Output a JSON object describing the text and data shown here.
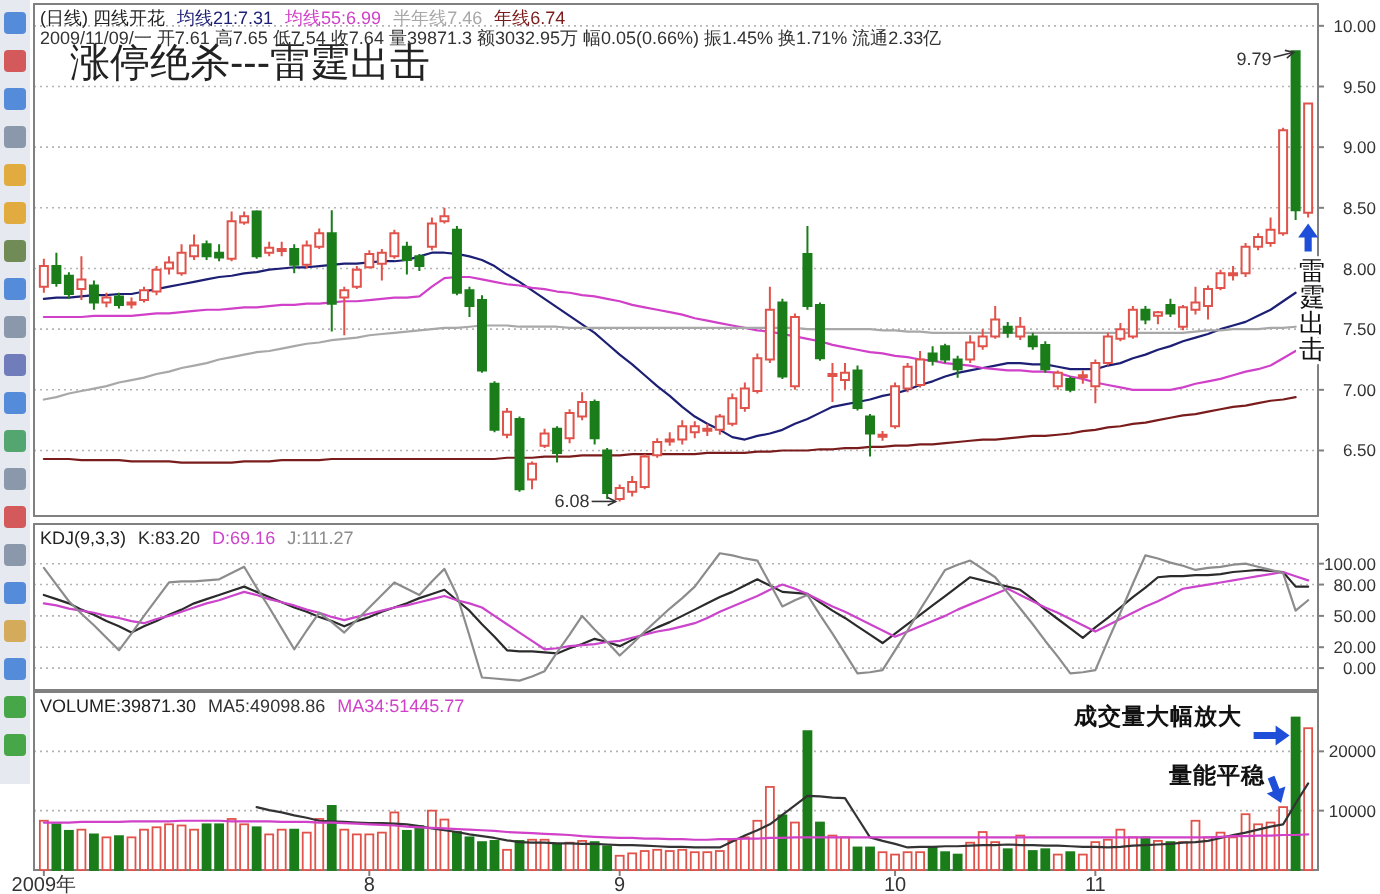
{
  "chart_data": [
    {
      "type": "candlestick",
      "title": "涨停绝杀---雷霆出击",
      "subtitle": "(日线) 四线开花",
      "categories": [
        null,
        null,
        null,
        null,
        null,
        null,
        null,
        null,
        null,
        null,
        null,
        null,
        null,
        null,
        null,
        null,
        null,
        null,
        null,
        null,
        null,
        null,
        null,
        null,
        null,
        null,
        null,
        null,
        null,
        null,
        null,
        null,
        null,
        null,
        null,
        null,
        null,
        null,
        null,
        null,
        null,
        null,
        null,
        null,
        null,
        null,
        null,
        null,
        null,
        null,
        null,
        null,
        null,
        null,
        null,
        null,
        null,
        null,
        null,
        null,
        null,
        null,
        null,
        null,
        null,
        null,
        null,
        null,
        null,
        null,
        null,
        null,
        null,
        null,
        null,
        null,
        null,
        null,
        null,
        null,
        null,
        null,
        null,
        null,
        null,
        null,
        null,
        null,
        null,
        null,
        null,
        null,
        null,
        null,
        null,
        null,
        null,
        null,
        null,
        null,
        null,
        null
      ],
      "ohlc": [
        [
          7.85,
          8.08,
          7.8,
          8.02
        ],
        [
          8.02,
          8.13,
          7.85,
          7.88
        ],
        [
          7.94,
          7.97,
          7.75,
          7.79
        ],
        [
          7.83,
          8.1,
          7.74,
          7.91
        ],
        [
          7.86,
          7.9,
          7.66,
          7.72
        ],
        [
          7.72,
          7.8,
          7.68,
          7.76
        ],
        [
          7.77,
          7.8,
          7.67,
          7.7
        ],
        [
          7.71,
          7.76,
          7.67,
          7.72
        ],
        [
          7.74,
          7.85,
          7.72,
          7.82
        ],
        [
          7.81,
          8.02,
          7.78,
          7.99
        ],
        [
          8.0,
          8.1,
          7.95,
          8.05
        ],
        [
          7.96,
          8.2,
          7.94,
          8.13
        ],
        [
          8.1,
          8.28,
          8.07,
          8.19
        ],
        [
          8.2,
          8.23,
          8.07,
          8.1
        ],
        [
          8.13,
          8.2,
          8.06,
          8.09
        ],
        [
          8.08,
          8.47,
          8.06,
          8.39
        ],
        [
          8.38,
          8.47,
          8.36,
          8.43
        ],
        [
          8.47,
          8.48,
          8.08,
          8.1
        ],
        [
          8.13,
          8.22,
          8.1,
          8.17
        ],
        [
          8.15,
          8.22,
          8.1,
          8.16
        ],
        [
          8.16,
          8.2,
          7.96,
          8.03
        ],
        [
          8.03,
          8.23,
          8.0,
          8.19
        ],
        [
          8.18,
          8.33,
          8.16,
          8.29
        ],
        [
          8.29,
          8.48,
          7.48,
          7.71
        ],
        [
          7.76,
          7.85,
          7.45,
          7.82
        ],
        [
          7.85,
          8.02,
          7.83,
          7.99
        ],
        [
          8.01,
          8.15,
          8.0,
          8.12
        ],
        [
          8.04,
          8.16,
          7.9,
          8.13
        ],
        [
          8.1,
          8.32,
          8.08,
          8.29
        ],
        [
          8.18,
          8.22,
          7.95,
          8.07
        ],
        [
          8.1,
          8.12,
          7.98,
          8.02
        ],
        [
          8.18,
          8.42,
          8.15,
          8.37
        ],
        [
          8.39,
          8.5,
          8.37,
          8.43
        ],
        [
          8.32,
          8.35,
          7.78,
          7.8
        ],
        [
          7.82,
          7.85,
          7.6,
          7.69
        ],
        [
          7.74,
          7.78,
          7.14,
          7.16
        ],
        [
          7.05,
          7.07,
          6.65,
          6.67
        ],
        [
          6.63,
          6.85,
          6.6,
          6.82
        ],
        [
          6.76,
          6.78,
          6.16,
          6.18
        ],
        [
          6.26,
          6.41,
          6.18,
          6.39
        ],
        [
          6.54,
          6.68,
          6.52,
          6.64
        ],
        [
          6.68,
          6.7,
          6.4,
          6.48
        ],
        [
          6.6,
          6.84,
          6.56,
          6.81
        ],
        [
          6.78,
          6.98,
          6.75,
          6.9
        ],
        [
          6.9,
          6.92,
          6.55,
          6.6
        ],
        [
          6.5,
          6.52,
          6.1,
          6.15
        ],
        [
          6.1,
          6.22,
          6.08,
          6.19
        ],
        [
          6.16,
          6.29,
          6.12,
          6.24
        ],
        [
          6.2,
          6.47,
          6.18,
          6.45
        ],
        [
          6.46,
          6.6,
          6.44,
          6.57
        ],
        [
          6.58,
          6.65,
          6.54,
          6.59
        ],
        [
          6.59,
          6.75,
          6.55,
          6.7
        ],
        [
          6.65,
          6.74,
          6.6,
          6.7
        ],
        [
          6.67,
          6.72,
          6.62,
          6.68
        ],
        [
          6.67,
          6.8,
          6.63,
          6.78
        ],
        [
          6.72,
          6.97,
          6.7,
          6.93
        ],
        [
          6.85,
          7.06,
          6.82,
          7.01
        ],
        [
          6.99,
          7.3,
          6.97,
          7.26
        ],
        [
          7.25,
          7.85,
          7.22,
          7.66
        ],
        [
          7.72,
          7.75,
          7.09,
          7.11
        ],
        [
          7.03,
          7.63,
          7.0,
          7.6
        ],
        [
          8.12,
          8.35,
          7.66,
          7.69
        ],
        [
          7.7,
          7.72,
          7.24,
          7.26
        ],
        [
          7.12,
          7.22,
          6.9,
          7.13
        ],
        [
          7.08,
          7.22,
          7.0,
          7.14
        ],
        [
          7.16,
          7.2,
          6.83,
          6.85
        ],
        [
          6.78,
          6.8,
          6.45,
          6.64
        ],
        [
          6.62,
          6.66,
          6.58,
          6.63
        ],
        [
          6.7,
          7.06,
          6.68,
          7.03
        ],
        [
          7.01,
          7.22,
          6.98,
          7.19
        ],
        [
          7.04,
          7.32,
          7.02,
          7.25
        ],
        [
          7.3,
          7.36,
          7.2,
          7.24
        ],
        [
          7.36,
          7.38,
          7.22,
          7.25
        ],
        [
          7.25,
          7.28,
          7.1,
          7.17
        ],
        [
          7.25,
          7.45,
          7.22,
          7.39
        ],
        [
          7.36,
          7.5,
          7.33,
          7.44
        ],
        [
          7.44,
          7.69,
          7.42,
          7.58
        ],
        [
          7.52,
          7.56,
          7.43,
          7.47
        ],
        [
          7.44,
          7.6,
          7.41,
          7.52
        ],
        [
          7.44,
          7.47,
          7.33,
          7.36
        ],
        [
          7.37,
          7.4,
          7.14,
          7.17
        ],
        [
          7.03,
          7.16,
          7.0,
          7.14
        ],
        [
          7.09,
          7.11,
          6.98,
          7.0
        ],
        [
          7.11,
          7.16,
          7.05,
          7.12
        ],
        [
          7.03,
          7.25,
          6.89,
          7.22
        ],
        [
          7.22,
          7.47,
          7.2,
          7.44
        ],
        [
          7.42,
          7.55,
          7.4,
          7.5
        ],
        [
          7.44,
          7.69,
          7.42,
          7.66
        ],
        [
          7.66,
          7.69,
          7.54,
          7.58
        ],
        [
          7.61,
          7.65,
          7.54,
          7.64
        ],
        [
          7.7,
          7.75,
          7.6,
          7.63
        ],
        [
          7.52,
          7.7,
          7.49,
          7.68
        ],
        [
          7.66,
          7.85,
          7.62,
          7.72
        ],
        [
          7.69,
          7.86,
          7.58,
          7.83
        ],
        [
          7.84,
          7.99,
          7.82,
          7.96
        ],
        [
          7.95,
          8.02,
          7.9,
          7.96
        ],
        [
          7.96,
          8.21,
          7.93,
          8.18
        ],
        [
          8.18,
          8.29,
          8.15,
          8.26
        ],
        [
          8.21,
          8.42,
          8.18,
          8.32
        ],
        [
          8.29,
          9.16,
          8.27,
          9.14
        ],
        [
          9.79,
          9.79,
          8.4,
          8.48
        ],
        [
          8.46,
          9.36,
          8.42,
          9.36
        ]
      ],
      "colors": [
        "#e0524a",
        "#1a7d1a",
        "#1a7d1a",
        "#e0524a",
        "#1a7d1a",
        "#e0524a",
        "#1a7d1a",
        "#e0524a",
        "#e0524a",
        "#e0524a",
        "#e0524a",
        "#e0524a",
        "#e0524a",
        "#1a7d1a",
        "#1a7d1a",
        "#e0524a",
        "#e0524a",
        "#1a7d1a",
        "#e0524a",
        "#e0524a",
        "#1a7d1a",
        "#e0524a",
        "#e0524a",
        "#1a7d1a",
        "#e0524a",
        "#e0524a",
        "#e0524a",
        "#e0524a",
        "#e0524a",
        "#1a7d1a",
        "#1a7d1a",
        "#e0524a",
        "#e0524a",
        "#1a7d1a",
        "#1a7d1a",
        "#1a7d1a",
        "#1a7d1a",
        "#e0524a",
        "#1a7d1a",
        "#e0524a",
        "#e0524a",
        "#1a7d1a",
        "#e0524a",
        "#e0524a",
        "#1a7d1a",
        "#1a7d1a",
        "#e0524a",
        "#e0524a",
        "#e0524a",
        "#e0524a",
        "#e0524a",
        "#e0524a",
        "#e0524a",
        "#e0524a",
        "#e0524a",
        "#e0524a",
        "#e0524a",
        "#e0524a",
        "#e0524a",
        "#1a7d1a",
        "#e0524a",
        "#1a7d1a",
        "#1a7d1a",
        "#e0524a",
        "#e0524a",
        "#1a7d1a",
        "#1a7d1a",
        "#e0524a",
        "#e0524a",
        "#e0524a",
        "#e0524a",
        "#1a7d1a",
        "#1a7d1a",
        "#1a7d1a",
        "#e0524a",
        "#e0524a",
        "#e0524a",
        "#1a7d1a",
        "#e0524a",
        "#1a7d1a",
        "#1a7d1a",
        "#e0524a",
        "#1a7d1a",
        "#e0524a",
        "#e0524a",
        "#e0524a",
        "#e0524a",
        "#e0524a",
        "#1a7d1a",
        "#e0524a",
        "#1a7d1a",
        "#e0524a",
        "#e0524a",
        "#e0524a",
        "#e0524a",
        "#e0524a",
        "#e0524a",
        "#e0524a",
        "#e0524a",
        "#e0524a",
        "#1a7d1a",
        "#e0524a"
      ],
      "series": [
        {
          "type": "line",
          "name": "均线21:7.31",
          "color": "#1c1f74",
          "values": [
            7.75,
            7.76,
            7.76,
            7.77,
            7.78,
            7.78,
            7.79,
            7.79,
            7.81,
            7.83,
            7.85,
            7.87,
            7.89,
            7.91,
            7.93,
            7.94,
            7.96,
            7.97,
            7.99,
            8.0,
            8.01,
            8.01,
            8.02,
            8.03,
            8.04,
            8.04,
            8.05,
            8.06,
            8.06,
            8.07,
            8.1,
            8.13,
            8.13,
            8.12,
            8.1,
            8.07,
            8.02,
            7.95,
            7.89,
            7.82,
            7.75,
            7.68,
            7.61,
            7.54,
            7.47,
            7.38,
            7.29,
            7.21,
            7.12,
            7.03,
            6.95,
            6.86,
            6.78,
            6.72,
            6.67,
            6.61,
            6.59,
            6.62,
            6.64,
            6.67,
            6.72,
            6.76,
            6.81,
            6.86,
            6.88,
            6.9,
            6.92,
            6.95,
            6.97,
            7.0,
            7.04,
            7.07,
            7.11,
            7.14,
            7.16,
            7.18,
            7.2,
            7.22,
            7.22,
            7.21,
            7.21,
            7.19,
            7.17,
            7.17,
            7.17,
            7.2,
            7.22,
            7.26,
            7.29,
            7.33,
            7.36,
            7.4,
            7.43,
            7.46,
            7.5,
            7.53,
            7.56,
            7.61,
            7.66,
            7.73,
            7.8,
            null
          ]
        },
        {
          "type": "line",
          "name": "均线55:6.99",
          "color": "#d040c8",
          "values": [
            7.6,
            7.6,
            7.6,
            7.6,
            7.61,
            7.61,
            7.61,
            7.61,
            7.62,
            7.63,
            7.63,
            7.64,
            7.65,
            7.66,
            7.66,
            7.67,
            7.68,
            7.68,
            7.69,
            7.7,
            7.7,
            7.71,
            7.71,
            7.72,
            7.73,
            7.73,
            7.74,
            7.75,
            7.76,
            7.76,
            7.77,
            7.85,
            7.92,
            7.93,
            7.93,
            7.91,
            7.89,
            7.87,
            7.86,
            7.84,
            7.83,
            7.81,
            7.8,
            7.78,
            7.77,
            7.75,
            7.73,
            7.7,
            7.68,
            7.66,
            7.64,
            7.62,
            7.59,
            7.57,
            7.55,
            7.53,
            7.51,
            7.49,
            7.48,
            7.46,
            7.44,
            7.42,
            7.4,
            7.37,
            7.35,
            7.33,
            7.31,
            7.3,
            7.28,
            7.27,
            7.25,
            7.24,
            7.22,
            7.21,
            7.2,
            7.18,
            7.17,
            7.16,
            7.16,
            7.15,
            7.15,
            7.14,
            7.11,
            7.09,
            7.06,
            7.04,
            7.02,
            7.0,
            7.0,
            7.0,
            7.0,
            7.02,
            7.05,
            7.07,
            7.09,
            7.12,
            7.15,
            7.17,
            7.2,
            7.26,
            7.32,
            null
          ]
        },
        {
          "type": "line",
          "name": "半年线7.46",
          "color": "#a8a8a8",
          "values": [
            6.92,
            6.94,
            6.97,
            6.99,
            7.01,
            7.03,
            7.06,
            7.08,
            7.1,
            7.13,
            7.15,
            7.18,
            7.2,
            7.22,
            7.25,
            7.27,
            7.29,
            7.31,
            7.32,
            7.34,
            7.36,
            7.38,
            7.39,
            7.41,
            7.42,
            7.43,
            7.45,
            7.46,
            7.47,
            7.48,
            7.49,
            7.5,
            7.51,
            7.51,
            7.52,
            7.53,
            7.53,
            7.53,
            7.52,
            7.52,
            7.52,
            7.52,
            7.51,
            7.51,
            7.51,
            7.51,
            7.51,
            7.51,
            7.51,
            7.51,
            7.51,
            7.51,
            7.51,
            7.51,
            7.51,
            7.51,
            7.51,
            7.51,
            7.51,
            7.51,
            7.51,
            7.5,
            7.5,
            7.5,
            7.5,
            7.5,
            7.5,
            7.49,
            7.49,
            7.48,
            7.48,
            7.47,
            7.47,
            7.47,
            7.47,
            7.47,
            7.47,
            7.47,
            7.47,
            7.47,
            7.47,
            7.47,
            7.47,
            7.47,
            7.47,
            7.47,
            7.47,
            7.47,
            7.47,
            7.47,
            7.47,
            7.47,
            7.48,
            7.49,
            7.49,
            7.5,
            7.5,
            7.5,
            7.51,
            7.51,
            7.52,
            null
          ]
        },
        {
          "type": "line",
          "name": "年线6.74",
          "color": "#7b1c1c",
          "values": [
            6.43,
            6.43,
            6.43,
            6.42,
            6.42,
            6.42,
            6.42,
            6.41,
            6.41,
            6.41,
            6.41,
            6.4,
            6.4,
            6.4,
            6.4,
            6.4,
            6.41,
            6.41,
            6.41,
            6.42,
            6.42,
            6.42,
            6.42,
            6.43,
            6.43,
            6.43,
            6.43,
            6.43,
            6.43,
            6.43,
            6.43,
            6.43,
            6.43,
            6.43,
            6.43,
            6.43,
            6.43,
            6.44,
            6.44,
            6.44,
            6.45,
            6.45,
            6.45,
            6.46,
            6.46,
            6.46,
            6.46,
            6.47,
            6.47,
            6.47,
            6.47,
            6.47,
            6.47,
            6.48,
            6.48,
            6.48,
            6.48,
            6.49,
            6.49,
            6.5,
            6.5,
            6.5,
            6.51,
            6.51,
            6.52,
            6.52,
            6.53,
            6.53,
            6.54,
            6.54,
            6.55,
            6.55,
            6.56,
            6.57,
            6.58,
            6.59,
            6.59,
            6.6,
            6.61,
            6.62,
            6.62,
            6.63,
            6.64,
            6.66,
            6.67,
            6.69,
            6.7,
            6.72,
            6.73,
            6.75,
            6.77,
            6.79,
            6.8,
            6.82,
            6.84,
            6.86,
            6.87,
            6.89,
            6.91,
            6.92,
            6.94,
            null
          ]
        }
      ],
      "ylim": [
        5.96,
        10.18
      ],
      "yticks": [
        {
          "value": 6.5,
          "label": "6.50"
        },
        {
          "value": 7,
          "label": "7.00"
        },
        {
          "value": 7.5,
          "label": "7.50"
        },
        {
          "value": 8,
          "label": "8.00"
        },
        {
          "value": 8.5,
          "label": "8.50"
        },
        {
          "value": 9,
          "label": "9.00"
        },
        {
          "value": 9.5,
          "label": "9.50"
        },
        {
          "value": 10,
          "label": "10.00"
        }
      ],
      "tick_labels": "y",
      "grid": "y",
      "legend": "top left",
      "annotations": [
        "9.79",
        "6.08",
        "雷霆出击",
        "2009/11/09/一 开7.61 高7.65 低7.54 收7.64 量39871.3 额3032.95万 幅0.05(0.66%) 振1.45% 换1.71% 流通2.33亿"
      ]
    },
    {
      "type": "line",
      "title": "KDJ(9,3,3)",
      "categories": [
        null,
        null,
        null,
        null,
        null,
        null,
        null,
        null,
        null,
        null,
        null,
        null,
        null,
        null,
        null,
        null,
        null,
        null,
        null,
        null,
        null,
        null,
        null,
        null,
        null,
        null,
        null,
        null,
        null,
        null,
        null,
        null,
        null,
        null,
        null,
        null,
        null,
        null,
        null,
        null,
        null,
        null,
        null,
        null,
        null,
        null,
        null,
        null,
        null,
        null,
        null,
        null,
        null,
        null,
        null,
        null,
        null,
        null,
        null,
        null,
        null,
        null,
        null,
        null,
        null,
        null,
        null,
        null,
        null,
        null,
        null,
        null,
        null,
        null,
        null,
        null,
        null,
        null,
        null,
        null,
        null,
        null,
        null,
        null,
        null,
        null,
        null,
        null,
        null,
        null,
        null,
        null,
        null,
        null,
        null,
        null,
        null,
        null,
        null,
        null,
        null,
        null
      ],
      "series": [
        {
          "name": "K:83.20",
          "color": "#2b2b2b",
          "values": [
            70,
            66,
            62,
            56,
            51,
            45,
            40,
            34,
            40,
            45,
            51,
            56,
            62,
            66,
            70,
            74,
            78,
            73,
            68,
            63,
            58,
            54,
            49,
            45,
            40,
            45,
            49,
            54,
            58,
            62,
            67,
            71,
            75,
            65,
            55,
            42,
            30,
            17,
            16,
            16,
            15,
            14,
            19,
            23,
            28,
            25,
            21,
            27,
            33,
            39,
            44,
            50,
            56,
            62,
            68,
            73,
            79,
            85,
            79,
            73,
            72,
            71,
            63,
            55,
            48,
            40,
            32,
            24,
            33,
            42,
            51,
            60,
            69,
            78,
            87,
            84,
            81,
            78,
            75,
            66,
            56,
            47,
            38,
            29,
            39,
            48,
            58,
            68,
            77,
            87,
            88,
            88,
            89,
            89,
            90,
            92,
            93,
            94,
            93,
            92,
            78,
            78
          ]
        },
        {
          "name": "D:69.16",
          "color": "#cc44cc",
          "values": [
            62,
            60,
            57,
            55,
            53,
            50,
            48,
            45,
            43,
            47,
            50,
            54,
            58,
            62,
            65,
            69,
            73,
            70,
            66,
            63,
            60,
            56,
            53,
            49,
            46,
            49,
            52,
            55,
            58,
            60,
            63,
            66,
            69,
            65,
            62,
            58,
            50,
            42,
            34,
            26,
            18,
            19,
            21,
            22,
            23,
            25,
            26,
            29,
            32,
            35,
            37,
            40,
            43,
            48,
            54,
            59,
            64,
            69,
            75,
            80,
            76,
            71,
            65,
            59,
            54,
            48,
            42,
            36,
            30,
            35,
            40,
            45,
            50,
            56,
            61,
            66,
            71,
            76,
            70,
            64,
            58,
            53,
            47,
            41,
            35,
            41,
            47,
            53,
            59,
            64,
            70,
            76,
            78,
            80,
            82,
            84,
            86,
            88,
            90,
            92,
            88,
            84
          ]
        },
        {
          "name": "J:111.27",
          "color": "#8c8c8c",
          "values": [
            96,
            80,
            64,
            52,
            41,
            29,
            17,
            33,
            50,
            66,
            82,
            83,
            83,
            84,
            85,
            91,
            97,
            77,
            58,
            38,
            18,
            36,
            53,
            44,
            34,
            46,
            58,
            70,
            82,
            76,
            70,
            83,
            95,
            70,
            31,
            -9,
            -10,
            -11,
            -12,
            -8,
            -3,
            15,
            32,
            50,
            37,
            25,
            12,
            23,
            35,
            46,
            57,
            67,
            78,
            94,
            110,
            108,
            105,
            103,
            81,
            59,
            65,
            70,
            51,
            33,
            14,
            -5,
            -4,
            -2,
            17,
            36,
            56,
            75,
            94,
            99,
            103,
            95,
            87,
            72,
            57,
            42,
            26,
            11,
            -5,
            -4,
            -2,
            26,
            53,
            81,
            108,
            105,
            101,
            98,
            94,
            96,
            97,
            99,
            100,
            97,
            94,
            91,
            55,
            65
          ]
        }
      ],
      "ylim": [
        -21,
        138
      ],
      "yticks": [
        {
          "value": 0,
          "label": "0.00"
        },
        {
          "value": 20,
          "label": "20.00"
        },
        {
          "value": 50,
          "label": "50.00"
        },
        {
          "value": 80,
          "label": "80.00"
        },
        {
          "value": 100,
          "label": "100.00"
        }
      ],
      "tick_labels": "y",
      "grid": "y",
      "legend": "top left"
    },
    {
      "type": "bar",
      "title": "VOLUME:39871.30",
      "categories": [
        "2009年",
        null,
        null,
        null,
        null,
        null,
        null,
        null,
        null,
        null,
        null,
        null,
        null,
        null,
        null,
        null,
        null,
        null,
        null,
        null,
        null,
        null,
        null,
        null,
        null,
        null,
        "8",
        null,
        null,
        null,
        null,
        null,
        null,
        null,
        null,
        null,
        null,
        null,
        null,
        null,
        null,
        null,
        null,
        null,
        null,
        null,
        "9",
        null,
        null,
        null,
        null,
        null,
        null,
        null,
        null,
        null,
        null,
        null,
        null,
        null,
        null,
        null,
        null,
        null,
        null,
        null,
        null,
        null,
        "10",
        null,
        null,
        null,
        null,
        null,
        null,
        null,
        null,
        null,
        null,
        null,
        null,
        null,
        null,
        null,
        "11",
        null,
        null,
        null,
        null,
        null,
        null,
        null,
        null,
        null,
        null,
        null,
        null,
        null,
        null,
        null,
        null,
        null
      ],
      "series": [
        {
          "colors": [
            "#e0524a",
            "#1a7d1a",
            "#1a7d1a",
            "#e0524a",
            "#1a7d1a",
            "#e0524a",
            "#1a7d1a",
            "#e0524a",
            "#e0524a",
            "#e0524a",
            "#e0524a",
            "#e0524a",
            "#e0524a",
            "#1a7d1a",
            "#1a7d1a",
            "#e0524a",
            "#e0524a",
            "#1a7d1a",
            "#e0524a",
            "#e0524a",
            "#1a7d1a",
            "#e0524a",
            "#e0524a",
            "#1a7d1a",
            "#e0524a",
            "#e0524a",
            "#e0524a",
            "#e0524a",
            "#e0524a",
            "#1a7d1a",
            "#1a7d1a",
            "#e0524a",
            "#e0524a",
            "#1a7d1a",
            "#1a7d1a",
            "#1a7d1a",
            "#1a7d1a",
            "#e0524a",
            "#1a7d1a",
            "#e0524a",
            "#e0524a",
            "#1a7d1a",
            "#e0524a",
            "#e0524a",
            "#1a7d1a",
            "#1a7d1a",
            "#e0524a",
            "#e0524a",
            "#e0524a",
            "#e0524a",
            "#e0524a",
            "#e0524a",
            "#e0524a",
            "#e0524a",
            "#e0524a",
            "#e0524a",
            "#e0524a",
            "#e0524a",
            "#e0524a",
            "#1a7d1a",
            "#e0524a",
            "#1a7d1a",
            "#1a7d1a",
            "#e0524a",
            "#e0524a",
            "#1a7d1a",
            "#1a7d1a",
            "#e0524a",
            "#e0524a",
            "#e0524a",
            "#e0524a",
            "#1a7d1a",
            "#1a7d1a",
            "#1a7d1a",
            "#e0524a",
            "#e0524a",
            "#e0524a",
            "#1a7d1a",
            "#e0524a",
            "#1a7d1a",
            "#1a7d1a",
            "#e0524a",
            "#1a7d1a",
            "#e0524a",
            "#e0524a",
            "#e0524a",
            "#e0524a",
            "#e0524a",
            "#1a7d1a",
            "#e0524a",
            "#1a7d1a",
            "#e0524a",
            "#e0524a",
            "#e0524a",
            "#e0524a",
            "#e0524a",
            "#e0524a",
            "#e0524a",
            "#e0524a",
            "#e0524a",
            "#1a7d1a",
            "#e0524a"
          ],
          "values": [
            8300,
            7700,
            6600,
            6800,
            6000,
            5500,
            5700,
            5500,
            6800,
            7200,
            7700,
            7500,
            6800,
            7700,
            7700,
            8600,
            7700,
            7200,
            6000,
            6800,
            6800,
            6300,
            8600,
            10800,
            6800,
            6000,
            6000,
            6300,
            9700,
            6600,
            7400,
            10000,
            8500,
            6400,
            5500,
            4700,
            4900,
            3400,
            4900,
            5100,
            5100,
            4300,
            4600,
            4900,
            4700,
            4000,
            2400,
            2800,
            3200,
            3400,
            3200,
            3400,
            3000,
            3000,
            3200,
            4900,
            5500,
            8300,
            14000,
            9200,
            8000,
            23400,
            8000,
            5800,
            5500,
            3800,
            3800,
            3000,
            2600,
            3000,
            3000,
            3800,
            3000,
            2600,
            4600,
            6400,
            4700,
            3500,
            5800,
            3200,
            3500,
            2600,
            3000,
            2600,
            4700,
            5100,
            6800,
            5500,
            5500,
            4900,
            4700,
            4700,
            8300,
            5500,
            6300,
            5500,
            9400,
            7700,
            8000,
            10600,
            25700,
            23900
          ]
        },
        {
          "type": "line",
          "name": "MA5:49098.86",
          "color": "#333333",
          "values": [
            null,
            null,
            null,
            null,
            null,
            null,
            null,
            null,
            null,
            null,
            null,
            null,
            null,
            null,
            null,
            null,
            null,
            10600,
            10100,
            9700,
            9200,
            8800,
            8300,
            8200,
            8100,
            8000,
            7900,
            7900,
            7800,
            7700,
            7400,
            7000,
            6700,
            6400,
            6000,
            5700,
            5400,
            5000,
            4700,
            4600,
            4600,
            4500,
            4500,
            4400,
            4400,
            4300,
            4200,
            4200,
            4100,
            4000,
            3900,
            3900,
            3800,
            3800,
            3800,
            4800,
            5800,
            6700,
            7700,
            9300,
            10900,
            12500,
            12400,
            12200,
            12100,
            8800,
            5500,
            4900,
            4400,
            3800,
            3900,
            3900,
            4000,
            4000,
            4100,
            4200,
            4200,
            4300,
            4200,
            4200,
            4100,
            4100,
            4000,
            3900,
            3900,
            3800,
            3900,
            4100,
            4200,
            4300,
            4400,
            4600,
            4700,
            4900,
            5400,
            5900,
            6300,
            6800,
            7300,
            7700,
            11200,
            14600
          ]
        },
        {
          "type": "line",
          "name": "MA34:51445.77",
          "color": "#d040c8",
          "values": [
            8000,
            8000,
            8000,
            8100,
            8100,
            8100,
            8100,
            8200,
            8200,
            8200,
            8200,
            8300,
            8300,
            8300,
            8300,
            8200,
            8200,
            8200,
            8200,
            8100,
            8100,
            8100,
            8000,
            8000,
            7900,
            7800,
            7700,
            7600,
            7500,
            7300,
            7200,
            7100,
            7000,
            6900,
            6800,
            6700,
            6600,
            6400,
            6300,
            6200,
            6100,
            6000,
            5900,
            5700,
            5600,
            5500,
            5400,
            5400,
            5300,
            5300,
            5200,
            5200,
            5100,
            5100,
            5200,
            5200,
            5300,
            5300,
            5400,
            5400,
            5500,
            5500,
            5500,
            5500,
            5500,
            5500,
            5500,
            5500,
            5500,
            5500,
            5500,
            5500,
            5500,
            5500,
            5500,
            5500,
            5500,
            5500,
            5500,
            5500,
            5500,
            5500,
            5500,
            5500,
            5500,
            5500,
            5500,
            5500,
            5500,
            5500,
            5500,
            5500,
            5500,
            5500,
            5600,
            5700,
            5700,
            5800,
            5800,
            5900,
            5900,
            6000
          ]
        }
      ],
      "ylim": [
        0,
        30000
      ],
      "yticks": [
        10000,
        20000
      ],
      "grid": "y",
      "legend": "top left",
      "annotations": [
        "成交量大幅放大",
        "量能平稳"
      ]
    }
  ]
}
